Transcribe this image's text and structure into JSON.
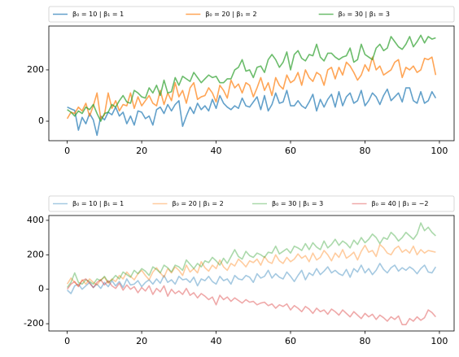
{
  "chart_data": [
    {
      "type": "line",
      "alpha": 0.7,
      "legend": "upper center",
      "legend_ncol": 3,
      "x": [
        0,
        1,
        2,
        3,
        4,
        5,
        6,
        7,
        8,
        9,
        10,
        11,
        12,
        13,
        14,
        15,
        16,
        17,
        18,
        19,
        20,
        21,
        22,
        23,
        24,
        25,
        26,
        27,
        28,
        29,
        30,
        31,
        32,
        33,
        34,
        35,
        36,
        37,
        38,
        39,
        40,
        41,
        42,
        43,
        44,
        45,
        46,
        47,
        48,
        49,
        50,
        51,
        52,
        53,
        54,
        55,
        56,
        57,
        58,
        59,
        60,
        61,
        62,
        63,
        64,
        65,
        66,
        67,
        68,
        69,
        70,
        71,
        72,
        73,
        74,
        75,
        76,
        77,
        78,
        79,
        80,
        81,
        82,
        83,
        84,
        85,
        86,
        87,
        88,
        89,
        90,
        91,
        92,
        93,
        94,
        95,
        96,
        97,
        98,
        99
      ],
      "xlim": [
        -4.95,
        103.95
      ],
      "xticks": [
        0,
        20,
        40,
        60,
        80,
        100
      ],
      "ylim": [
        -76,
        371
      ],
      "yticks": [
        0,
        200
      ],
      "series": [
        {
          "name": "β₀ = 10 | β₁ = 1",
          "color": "#1f77b4",
          "values": [
            55,
            48,
            42,
            -35,
            15,
            -10,
            30,
            5,
            -55,
            20,
            5,
            35,
            25,
            55,
            20,
            35,
            -10,
            20,
            -15,
            40,
            35,
            10,
            20,
            -15,
            45,
            55,
            30,
            65,
            40,
            65,
            80,
            -20,
            20,
            55,
            30,
            70,
            45,
            60,
            40,
            85,
            50,
            100,
            70,
            55,
            45,
            60,
            50,
            90,
            60,
            55,
            75,
            95,
            45,
            100,
            40,
            65,
            110,
            70,
            75,
            120,
            60,
            60,
            80,
            60,
            50,
            75,
            105,
            40,
            85,
            55,
            85,
            105,
            55,
            115,
            60,
            95,
            110,
            70,
            80,
            120,
            60,
            80,
            110,
            95,
            65,
            100,
            125,
            80,
            95,
            110,
            75,
            130,
            130,
            80,
            70,
            115,
            70,
            80,
            115,
            90
          ]
        },
        {
          "name": "β₀ = 20 | β₁ = 2",
          "color": "#ff7f0e",
          "values": [
            10,
            35,
            30,
            55,
            40,
            70,
            20,
            60,
            110,
            10,
            25,
            110,
            50,
            80,
            40,
            65,
            60,
            110,
            50,
            95,
            60,
            80,
            100,
            70,
            60,
            120,
            65,
            110,
            80,
            150,
            95,
            120,
            70,
            130,
            150,
            85,
            95,
            100,
            130,
            110,
            75,
            140,
            120,
            90,
            160,
            130,
            145,
            110,
            150,
            140,
            95,
            130,
            170,
            120,
            150,
            100,
            170,
            140,
            125,
            180,
            150,
            160,
            190,
            140,
            200,
            170,
            155,
            190,
            180,
            140,
            200,
            210,
            165,
            210,
            180,
            230,
            215,
            190,
            160,
            180,
            220,
            195,
            250,
            200,
            215,
            180,
            190,
            200,
            230,
            240,
            170,
            210,
            200,
            215,
            190,
            200,
            245,
            240,
            250,
            180
          ]
        },
        {
          "name": "β₀ = 30 | β₁ = 3",
          "color": "#2ca02c",
          "values": [
            45,
            35,
            20,
            40,
            30,
            55,
            45,
            65,
            30,
            0,
            30,
            35,
            65,
            55,
            80,
            100,
            75,
            70,
            120,
            110,
            95,
            90,
            130,
            110,
            140,
            100,
            160,
            110,
            115,
            170,
            140,
            175,
            165,
            155,
            190,
            170,
            150,
            165,
            180,
            170,
            175,
            150,
            150,
            165,
            165,
            200,
            210,
            240,
            195,
            200,
            170,
            210,
            215,
            190,
            240,
            260,
            240,
            210,
            230,
            270,
            200,
            260,
            275,
            245,
            235,
            260,
            255,
            300,
            250,
            235,
            265,
            265,
            250,
            240,
            250,
            255,
            285,
            230,
            240,
            300,
            260,
            250,
            240,
            285,
            300,
            275,
            285,
            330,
            310,
            290,
            280,
            300,
            330,
            290,
            310,
            335,
            305,
            330,
            320,
            325
          ]
        }
      ]
    },
    {
      "type": "line",
      "alpha": 0.4,
      "legend": "upper center",
      "legend_ncol": 4,
      "x": [
        0,
        1,
        2,
        3,
        4,
        5,
        6,
        7,
        8,
        9,
        10,
        11,
        12,
        13,
        14,
        15,
        16,
        17,
        18,
        19,
        20,
        21,
        22,
        23,
        24,
        25,
        26,
        27,
        28,
        29,
        30,
        31,
        32,
        33,
        34,
        35,
        36,
        37,
        38,
        39,
        40,
        41,
        42,
        43,
        44,
        45,
        46,
        47,
        48,
        49,
        50,
        51,
        52,
        53,
        54,
        55,
        56,
        57,
        58,
        59,
        60,
        61,
        62,
        63,
        64,
        65,
        66,
        67,
        68,
        69,
        70,
        71,
        72,
        73,
        74,
        75,
        76,
        77,
        78,
        79,
        80,
        81,
        82,
        83,
        84,
        85,
        86,
        87,
        88,
        89,
        90,
        91,
        92,
        93,
        94,
        95,
        96,
        97,
        98,
        99
      ],
      "xlim": [
        -4.95,
        103.95
      ],
      "xticks": [
        0,
        20,
        40,
        60,
        80,
        100
      ],
      "ylim": [
        -242,
        428
      ],
      "yticks": [
        -200,
        0,
        200,
        400
      ],
      "series": [
        {
          "name": "β₀ = 10 | β₁ = 1",
          "color": "#1f77b4",
          "values": [
            -5,
            -25,
            20,
            30,
            0,
            20,
            40,
            10,
            30,
            5,
            40,
            15,
            50,
            20,
            45,
            10,
            60,
            25,
            30,
            50,
            15,
            40,
            55,
            30,
            60,
            35,
            80,
            40,
            55,
            30,
            75,
            55,
            60,
            40,
            70,
            20,
            60,
            50,
            75,
            45,
            30,
            75,
            50,
            60,
            30,
            80,
            60,
            55,
            80,
            70,
            40,
            90,
            65,
            75,
            110,
            65,
            90,
            70,
            60,
            100,
            75,
            45,
            80,
            110,
            55,
            95,
            80,
            120,
            85,
            105,
            130,
            95,
            110,
            90,
            80,
            115,
            70,
            120,
            100,
            140,
            95,
            120,
            85,
            110,
            150,
            115,
            95,
            125,
            140,
            105,
            125,
            110,
            130,
            115,
            90,
            120,
            140,
            100,
            95,
            130
          ]
        },
        {
          "name": "β₀ = 20 | β₁ = 2",
          "color": "#ff7f0e",
          "values": [
            30,
            65,
            40,
            20,
            55,
            30,
            60,
            40,
            25,
            55,
            70,
            35,
            60,
            45,
            80,
            60,
            100,
            75,
            55,
            90,
            110,
            80,
            55,
            100,
            125,
            95,
            70,
            120,
            95,
            130,
            110,
            80,
            140,
            100,
            120,
            95,
            160,
            125,
            105,
            140,
            120,
            170,
            130,
            110,
            150,
            135,
            175,
            155,
            130,
            165,
            155,
            175,
            140,
            190,
            160,
            150,
            200,
            165,
            150,
            185,
            160,
            175,
            205,
            180,
            195,
            160,
            210,
            170,
            185,
            225,
            200,
            165,
            210,
            185,
            230,
            180,
            195,
            215,
            170,
            220,
            255,
            215,
            225,
            190,
            260,
            240,
            210,
            200,
            235,
            250,
            215,
            230,
            210,
            250,
            200,
            230,
            210,
            225,
            220,
            215
          ]
        },
        {
          "name": "β₀ = 30 | β₁ = 3",
          "color": "#2ca02c",
          "values": [
            10,
            40,
            95,
            40,
            30,
            55,
            45,
            30,
            60,
            50,
            75,
            40,
            55,
            80,
            60,
            100,
            85,
            70,
            110,
            90,
            120,
            105,
            80,
            130,
            115,
            95,
            140,
            125,
            100,
            140,
            130,
            110,
            170,
            145,
            120,
            150,
            130,
            165,
            155,
            185,
            165,
            140,
            180,
            150,
            190,
            230,
            190,
            175,
            220,
            195,
            185,
            210,
            200,
            185,
            215,
            210,
            250,
            205,
            220,
            235,
            210,
            250,
            240,
            225,
            265,
            230,
            270,
            245,
            230,
            280,
            240,
            260,
            290,
            255,
            280,
            265,
            240,
            285,
            260,
            300,
            270,
            290,
            320,
            300,
            265,
            300,
            290,
            330,
            310,
            280,
            300,
            330,
            310,
            290,
            320,
            385,
            340,
            360,
            330,
            310
          ]
        },
        {
          "name": "β₀ = 40 | β₁ = −2",
          "color": "#d62728",
          "values": [
            0,
            30,
            45,
            15,
            50,
            60,
            35,
            10,
            40,
            55,
            25,
            50,
            20,
            5,
            35,
            -5,
            25,
            0,
            15,
            -20,
            10,
            -10,
            20,
            -30,
            5,
            -15,
            20,
            -40,
            0,
            -25,
            -10,
            -30,
            5,
            -35,
            -20,
            -50,
            -25,
            -40,
            -60,
            -45,
            -90,
            -35,
            -60,
            -45,
            -70,
            -50,
            -65,
            -80,
            -60,
            -75,
            -70,
            -90,
            -80,
            -75,
            -95,
            -85,
            -110,
            -90,
            -100,
            -85,
            -120,
            -95,
            -110,
            -130,
            -100,
            -115,
            -140,
            -110,
            -130,
            -120,
            -145,
            -115,
            -130,
            -150,
            -120,
            -140,
            -160,
            -130,
            -150,
            -170,
            -140,
            -160,
            -145,
            -175,
            -150,
            -165,
            -185,
            -160,
            -175,
            -155,
            -205,
            -205,
            -170,
            -185,
            -160,
            -180,
            -165,
            -120,
            -135,
            -160
          ]
        }
      ]
    }
  ]
}
